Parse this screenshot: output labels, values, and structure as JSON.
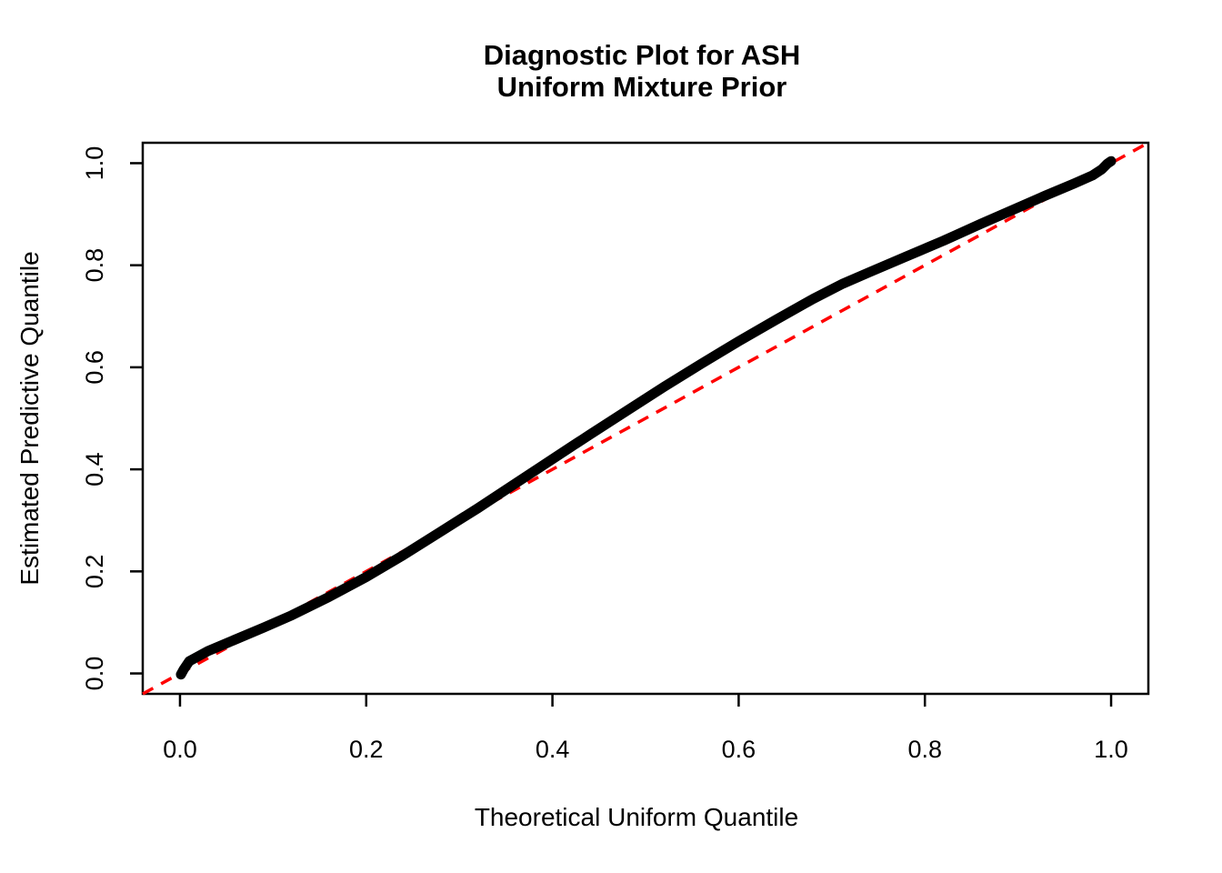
{
  "chart_data": {
    "type": "line",
    "title_line1": "Diagnostic Plot for ASH",
    "title_line2": "Uniform Mixture Prior",
    "xlabel": "Theoretical Uniform Quantile",
    "ylabel": "Estimated Predictive Quantile",
    "xlim": [
      -0.04,
      1.04
    ],
    "ylim": [
      -0.04,
      1.04
    ],
    "grid": false,
    "legend": null,
    "x_ticks": {
      "values": [
        0.0,
        0.2,
        0.4,
        0.6,
        0.8,
        1.0
      ],
      "labels": [
        "0.0",
        "0.2",
        "0.4",
        "0.6",
        "0.8",
        "1.0"
      ]
    },
    "y_ticks": {
      "values": [
        0.0,
        0.2,
        0.4,
        0.6,
        0.8,
        1.0
      ],
      "labels": [
        "0.0",
        "0.2",
        "0.4",
        "0.6",
        "0.8",
        "1.0"
      ]
    },
    "series": [
      {
        "name": "estimated_predictive_quantile_curve",
        "color": "#000000",
        "line_width": 11,
        "points": [
          [
            0.001,
            -0.002
          ],
          [
            0.004,
            0.008
          ],
          [
            0.01,
            0.024
          ],
          [
            0.03,
            0.044
          ],
          [
            0.06,
            0.067
          ],
          [
            0.09,
            0.09
          ],
          [
            0.12,
            0.114
          ],
          [
            0.16,
            0.15
          ],
          [
            0.2,
            0.189
          ],
          [
            0.24,
            0.232
          ],
          [
            0.28,
            0.278
          ],
          [
            0.32,
            0.324
          ],
          [
            0.36,
            0.372
          ],
          [
            0.4,
            0.42
          ],
          [
            0.42,
            0.444
          ],
          [
            0.44,
            0.468
          ],
          [
            0.48,
            0.515
          ],
          [
            0.52,
            0.562
          ],
          [
            0.56,
            0.607
          ],
          [
            0.6,
            0.651
          ],
          [
            0.64,
            0.693
          ],
          [
            0.68,
            0.734
          ],
          [
            0.712,
            0.764
          ],
          [
            0.74,
            0.786
          ],
          [
            0.78,
            0.817
          ],
          [
            0.82,
            0.848
          ],
          [
            0.86,
            0.881
          ],
          [
            0.9,
            0.913
          ],
          [
            0.93,
            0.937
          ],
          [
            0.96,
            0.96
          ],
          [
            0.98,
            0.976
          ],
          [
            0.99,
            0.988
          ],
          [
            0.996,
            0.999
          ],
          [
            1.0,
            1.004
          ]
        ]
      }
    ],
    "reference_line": {
      "name": "identity_line_y_equals_x",
      "color": "#FF0000",
      "style": "dashed",
      "line_width": 3.5,
      "from": [
        -0.04,
        -0.04
      ],
      "to": [
        1.04,
        1.04
      ]
    }
  },
  "colors": {
    "background": "#FFFFFF",
    "axis": "#000000",
    "text": "#000000"
  }
}
